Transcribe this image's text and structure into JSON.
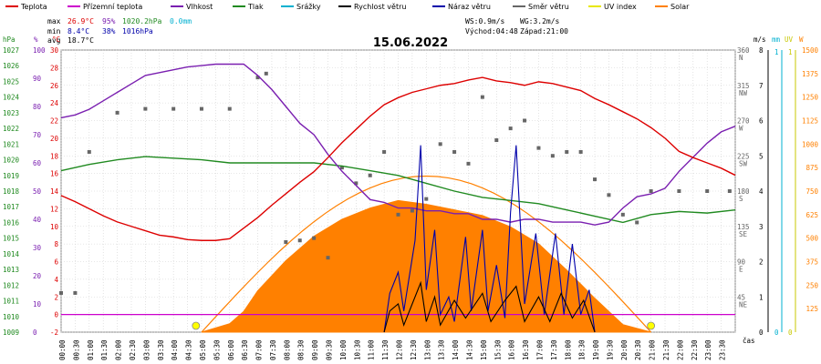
{
  "legend": [
    {
      "label": "Teplota",
      "color": "#dd0000"
    },
    {
      "label": "Přízemní teplota",
      "color": "#cc00cc"
    },
    {
      "label": "Vlhkost",
      "color": "#7a1fb0"
    },
    {
      "label": "Tlak",
      "color": "#208a20"
    },
    {
      "label": "Srážky",
      "color": "#00b0d0"
    },
    {
      "label": "Rychlost větru",
      "color": "#000000"
    },
    {
      "label": "Náraz větru",
      "color": "#0000aa"
    },
    {
      "label": "Směr větru",
      "color": "#666666"
    },
    {
      "label": "UV index",
      "color": "#e8e800"
    },
    {
      "label": "Solar",
      "color": "#ff8000"
    }
  ],
  "stats": {
    "max_label": "max",
    "max_temp": "26.9°C",
    "max_hum": "95%",
    "max_press": "1020.2hPa",
    "max_rain": "0.0mm",
    "min_label": "min",
    "min_temp": "8.4°C",
    "min_hum": "38%",
    "min_press": "1016hPa",
    "avg_label": "avg",
    "avg_temp": "18.7°C",
    "ws": "WS:0.9m/s",
    "wg": "WG:3.2m/s",
    "sunrise": "Východ:04:48",
    "sunset": "Západ:21:00"
  },
  "title": "15.06.2022",
  "axis_units": {
    "press": "hPa",
    "hum": "%",
    "temp": "°C",
    "dir": "",
    "ms": "m/s",
    "mm": "mm",
    "uv": "UV",
    "wm2": "W",
    "xlabel": "čas"
  },
  "axes": {
    "temp": {
      "min": -2,
      "max": 30,
      "ticks": [
        -2,
        0,
        2,
        4,
        6,
        8,
        10,
        12,
        14,
        16,
        18,
        20,
        22,
        24,
        26,
        28,
        30
      ]
    },
    "hum": {
      "min": 0,
      "max": 100,
      "ticks": [
        0,
        10,
        20,
        30,
        40,
        50,
        60,
        70,
        80,
        90,
        100
      ]
    },
    "press": {
      "min": 1009,
      "max": 1027,
      "ticks": [
        1009,
        1010,
        1011,
        1012,
        1013,
        1014,
        1015,
        1016,
        1017,
        1018,
        1019,
        1020,
        1021,
        1022,
        1023,
        1024,
        1025,
        1026,
        1027
      ]
    },
    "dir": {
      "ticks": [
        {
          "v": 45,
          "t": "45",
          "d": "NE"
        },
        {
          "v": 90,
          "t": "90",
          "d": "E"
        },
        {
          "v": 135,
          "t": "135",
          "d": "SE"
        },
        {
          "v": 180,
          "t": "180",
          "d": "S"
        },
        {
          "v": 225,
          "t": "225",
          "d": "SW"
        },
        {
          "v": 270,
          "t": "270",
          "d": "W"
        },
        {
          "v": 315,
          "t": "315",
          "d": "NW"
        },
        {
          "v": 360,
          "t": "360",
          "d": "N"
        }
      ]
    },
    "ms": {
      "min": 0,
      "max": 8,
      "ticks": [
        0,
        1,
        2,
        3,
        4,
        5,
        6,
        7,
        8
      ]
    },
    "mm": {
      "ticks": [
        "0",
        "1"
      ]
    },
    "uv": {
      "ticks": [
        "0",
        "1"
      ]
    },
    "wm2": {
      "min": 0,
      "max": 1500,
      "ticks": [
        0,
        125,
        250,
        375,
        500,
        625,
        750,
        875,
        1000,
        1125,
        1250,
        1375,
        1500
      ]
    },
    "x_ticks": [
      "00:00",
      "00:30",
      "01:00",
      "01:30",
      "02:00",
      "02:30",
      "03:00",
      "03:30",
      "04:00",
      "04:30",
      "05:00",
      "05:30",
      "06:00",
      "06:30",
      "07:00",
      "07:30",
      "08:00",
      "08:30",
      "09:00",
      "09:30",
      "10:00",
      "10:30",
      "11:00",
      "11:30",
      "12:00",
      "12:30",
      "13:00",
      "13:30",
      "14:00",
      "14:30",
      "15:00",
      "15:30",
      "16:00",
      "16:30",
      "17:00",
      "17:30",
      "18:00",
      "18:30",
      "19:00",
      "19:30",
      "20:00",
      "20:30",
      "21:00",
      "21:30",
      "22:00",
      "22:30",
      "23:00",
      "23:30"
    ]
  },
  "chart_data": {
    "type": "line",
    "title": "15.06.2022",
    "x_unit": "hours",
    "grid": true,
    "series": [
      {
        "name": "Teplota",
        "axis": "temp",
        "color": "#dd0000",
        "points": [
          [
            0,
            13.5
          ],
          [
            0.5,
            12.8
          ],
          [
            1,
            12.0
          ],
          [
            1.5,
            11.2
          ],
          [
            2,
            10.5
          ],
          [
            2.5,
            10.0
          ],
          [
            3,
            9.5
          ],
          [
            3.5,
            9.0
          ],
          [
            4,
            8.8
          ],
          [
            4.5,
            8.5
          ],
          [
            5,
            8.4
          ],
          [
            5.5,
            8.4
          ],
          [
            6,
            8.6
          ],
          [
            6.5,
            9.8
          ],
          [
            7,
            11.0
          ],
          [
            7.5,
            12.4
          ],
          [
            8,
            13.7
          ],
          [
            8.5,
            15.0
          ],
          [
            9,
            16.2
          ],
          [
            9.5,
            17.8
          ],
          [
            10,
            19.5
          ],
          [
            10.5,
            21.0
          ],
          [
            11,
            22.5
          ],
          [
            11.5,
            23.8
          ],
          [
            12,
            24.6
          ],
          [
            12.5,
            25.2
          ],
          [
            13,
            25.6
          ],
          [
            13.5,
            26.0
          ],
          [
            14,
            26.2
          ],
          [
            14.5,
            26.6
          ],
          [
            15,
            26.9
          ],
          [
            15.5,
            26.5
          ],
          [
            16,
            26.3
          ],
          [
            16.5,
            26.0
          ],
          [
            17,
            26.4
          ],
          [
            17.5,
            26.2
          ],
          [
            18,
            25.8
          ],
          [
            18.5,
            25.4
          ],
          [
            19,
            24.5
          ],
          [
            19.5,
            23.8
          ],
          [
            20,
            23.0
          ],
          [
            20.5,
            22.2
          ],
          [
            21,
            21.2
          ],
          [
            21.5,
            20.0
          ],
          [
            22,
            18.5
          ],
          [
            22.5,
            17.8
          ],
          [
            23,
            17.2
          ],
          [
            23.5,
            16.6
          ],
          [
            24,
            15.8
          ]
        ]
      },
      {
        "name": "Přízemní teplota",
        "axis": "temp",
        "color": "#cc00cc",
        "points": [
          [
            0,
            0
          ],
          [
            24,
            0
          ]
        ]
      },
      {
        "name": "Vlhkost",
        "axis": "hum",
        "color": "#7a1fb0",
        "points": [
          [
            0,
            76
          ],
          [
            0.5,
            77
          ],
          [
            1,
            79
          ],
          [
            1.5,
            82
          ],
          [
            2,
            85
          ],
          [
            2.5,
            88
          ],
          [
            3,
            91
          ],
          [
            3.5,
            92
          ],
          [
            4,
            93
          ],
          [
            4.5,
            94
          ],
          [
            5,
            94.5
          ],
          [
            5.5,
            95
          ],
          [
            6,
            95
          ],
          [
            6.5,
            95
          ],
          [
            7,
            91
          ],
          [
            7.5,
            86
          ],
          [
            8,
            80
          ],
          [
            8.5,
            74
          ],
          [
            9,
            70
          ],
          [
            9.5,
            63
          ],
          [
            10,
            57
          ],
          [
            10.5,
            52
          ],
          [
            11,
            47
          ],
          [
            11.5,
            46
          ],
          [
            12,
            44
          ],
          [
            12.5,
            44
          ],
          [
            13,
            43
          ],
          [
            13.5,
            43
          ],
          [
            14,
            42
          ],
          [
            14.5,
            42
          ],
          [
            15,
            40
          ],
          [
            15.5,
            40
          ],
          [
            16,
            39
          ],
          [
            16.5,
            40
          ],
          [
            17,
            40
          ],
          [
            17.5,
            39
          ],
          [
            18,
            39
          ],
          [
            18.5,
            39
          ],
          [
            19,
            38
          ],
          [
            19.5,
            39
          ],
          [
            20,
            44
          ],
          [
            20.5,
            48
          ],
          [
            21,
            49
          ],
          [
            21.5,
            51
          ],
          [
            22,
            57
          ],
          [
            22.5,
            62
          ],
          [
            23,
            67
          ],
          [
            23.5,
            71
          ],
          [
            24,
            73
          ]
        ]
      },
      {
        "name": "Tlak",
        "axis": "press",
        "color": "#208a20",
        "points": [
          [
            0,
            1019.3
          ],
          [
            1,
            1019.7
          ],
          [
            2,
            1020.0
          ],
          [
            3,
            1020.2
          ],
          [
            4,
            1020.1
          ],
          [
            5,
            1020.0
          ],
          [
            6,
            1019.8
          ],
          [
            7,
            1019.8
          ],
          [
            8,
            1019.8
          ],
          [
            9,
            1019.8
          ],
          [
            10,
            1019.6
          ],
          [
            11,
            1019.3
          ],
          [
            12,
            1019.0
          ],
          [
            13,
            1018.5
          ],
          [
            14,
            1018.0
          ],
          [
            15,
            1017.6
          ],
          [
            16,
            1017.4
          ],
          [
            17,
            1017.2
          ],
          [
            18,
            1016.8
          ],
          [
            19,
            1016.4
          ],
          [
            20,
            1016.0
          ],
          [
            21,
            1016.5
          ],
          [
            22,
            1016.7
          ],
          [
            23,
            1016.6
          ],
          [
            24,
            1016.8
          ]
        ]
      },
      {
        "name": "Solar",
        "axis": "wm2",
        "color": "#ff8000",
        "points": [
          [
            5,
            0
          ],
          [
            6,
            45
          ],
          [
            6.5,
            110
          ],
          [
            7,
            220
          ],
          [
            8,
            380
          ],
          [
            9,
            510
          ],
          [
            10,
            600
          ],
          [
            11,
            660
          ],
          [
            12,
            700
          ],
          [
            13,
            680
          ],
          [
            14,
            650
          ],
          [
            15,
            620
          ],
          [
            16,
            560
          ],
          [
            17,
            470
          ],
          [
            18,
            330
          ],
          [
            19,
            180
          ],
          [
            20,
            40
          ],
          [
            21,
            0
          ]
        ]
      },
      {
        "name": "Náraz větru",
        "axis": "ms",
        "color": "#0000aa",
        "points": [
          [
            11.5,
            0
          ],
          [
            11.7,
            1.1
          ],
          [
            12.0,
            1.7
          ],
          [
            12.2,
            0.6
          ],
          [
            12.6,
            2.6
          ],
          [
            12.8,
            5.3
          ],
          [
            13.0,
            1.2
          ],
          [
            13.3,
            2.9
          ],
          [
            13.5,
            0.5
          ],
          [
            13.8,
            1.0
          ],
          [
            14.0,
            0.3
          ],
          [
            14.4,
            2.7
          ],
          [
            14.6,
            0.6
          ],
          [
            15.0,
            2.9
          ],
          [
            15.2,
            0.6
          ],
          [
            15.5,
            1.9
          ],
          [
            15.8,
            0.4
          ],
          [
            16.0,
            3.4
          ],
          [
            16.2,
            5.3
          ],
          [
            16.5,
            0.8
          ],
          [
            16.9,
            2.8
          ],
          [
            17.2,
            0.5
          ],
          [
            17.6,
            2.8
          ],
          [
            17.9,
            0.5
          ],
          [
            18.2,
            2.5
          ],
          [
            18.5,
            0.5
          ],
          [
            18.8,
            1.2
          ],
          [
            19.0,
            0
          ]
        ]
      },
      {
        "name": "Rychlost větru",
        "axis": "ms",
        "color": "#000000",
        "points": [
          [
            11.5,
            0
          ],
          [
            11.7,
            0.6
          ],
          [
            12.0,
            0.8
          ],
          [
            12.2,
            0.2
          ],
          [
            12.8,
            1.4
          ],
          [
            13.0,
            0.3
          ],
          [
            13.3,
            1.0
          ],
          [
            13.5,
            0.2
          ],
          [
            14.0,
            0.9
          ],
          [
            14.4,
            0.4
          ],
          [
            15.0,
            1.1
          ],
          [
            15.3,
            0.3
          ],
          [
            15.8,
            0.9
          ],
          [
            16.2,
            1.3
          ],
          [
            16.5,
            0.3
          ],
          [
            17.0,
            1.0
          ],
          [
            17.4,
            0.3
          ],
          [
            17.8,
            1.1
          ],
          [
            18.2,
            0.4
          ],
          [
            18.6,
            0.9
          ],
          [
            19.0,
            0
          ]
        ]
      },
      {
        "name": "Směr větru",
        "axis": "dir",
        "color": "#666666",
        "points": [
          [
            0,
            50
          ],
          [
            0.5,
            50
          ],
          [
            1,
            230
          ],
          [
            2,
            280
          ],
          [
            3,
            285
          ],
          [
            4,
            285
          ],
          [
            5,
            285
          ],
          [
            6,
            285
          ],
          [
            7,
            325
          ],
          [
            7.3,
            330
          ],
          [
            8,
            115
          ],
          [
            8.5,
            117
          ],
          [
            9,
            120
          ],
          [
            9.5,
            95
          ],
          [
            10,
            210
          ],
          [
            10.5,
            190
          ],
          [
            11,
            200
          ],
          [
            11.5,
            230
          ],
          [
            12,
            150
          ],
          [
            12.5,
            155
          ],
          [
            13,
            170
          ],
          [
            13.5,
            240
          ],
          [
            14,
            230
          ],
          [
            14.5,
            215
          ],
          [
            15,
            300
          ],
          [
            15.5,
            245
          ],
          [
            16,
            260
          ],
          [
            16.5,
            270
          ],
          [
            17,
            235
          ],
          [
            17.5,
            225
          ],
          [
            18,
            230
          ],
          [
            18.5,
            230
          ],
          [
            19,
            195
          ],
          [
            19.5,
            175
          ],
          [
            20,
            150
          ],
          [
            20.5,
            140
          ],
          [
            21,
            180
          ],
          [
            22,
            180
          ],
          [
            23,
            180
          ],
          [
            23.8,
            180
          ]
        ]
      },
      {
        "name": "UV index",
        "axis": "uv",
        "color": "#e8e800",
        "points": [
          [
            5,
            0
          ],
          [
            21,
            0
          ]
        ]
      }
    ]
  }
}
